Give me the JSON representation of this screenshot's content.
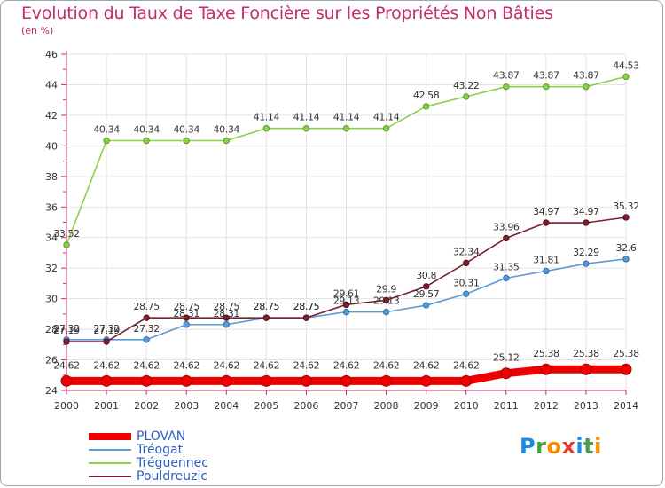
{
  "title": "Evolution du Taux de Taxe Foncière sur les Propriétés Non Bâties",
  "subtitle": "(en %)",
  "logo_text": "Proxiti",
  "chart_data": {
    "type": "line",
    "title": "Evolution du Taux de Taxe Foncière sur les Propriétés Non Bâties",
    "ylabel": "(en %)",
    "xlabel": "",
    "ylim": [
      24,
      46
    ],
    "yticks": [
      "24",
      "26",
      "28",
      "30",
      "32",
      "34",
      "36",
      "38",
      "40",
      "42",
      "44",
      "46"
    ],
    "grid": true,
    "legend_position": "bottom-left",
    "categories": [
      "2000",
      "2001",
      "2002",
      "2003",
      "2004",
      "2005",
      "2006",
      "2007",
      "2008",
      "2009",
      "2010",
      "2011",
      "2012",
      "2013",
      "2014"
    ],
    "series": [
      {
        "name": "PLOVAN",
        "color": "#ee0000",
        "values": [
          24.62,
          24.62,
          24.62,
          24.62,
          24.62,
          24.62,
          24.62,
          24.62,
          24.62,
          24.62,
          24.62,
          25.12,
          25.38,
          25.38,
          25.38
        ],
        "labels": [
          "24.62",
          "24.62",
          "24.62",
          "24.62",
          "24.62",
          "24.62",
          "24.62",
          "24.62",
          "24.62",
          "24.62",
          "24.62",
          "25.12",
          "25.38",
          "25.38",
          "25.38"
        ]
      },
      {
        "name": "Tréogat",
        "color": "#5b9bd5",
        "values": [
          27.32,
          27.32,
          27.32,
          28.31,
          28.31,
          28.75,
          28.75,
          29.13,
          29.13,
          29.57,
          30.31,
          31.35,
          31.81,
          32.29,
          32.6
        ],
        "labels": [
          "27.32",
          "27.32",
          "27.32",
          "28.31",
          "28.31",
          "28.75",
          "28.75",
          "29.13",
          "29.13",
          "29.57",
          "30.31",
          "31.35",
          "31.81",
          "32.29",
          "32.6"
        ]
      },
      {
        "name": "Tréguennec",
        "color": "#8dd04a",
        "values": [
          33.52,
          40.34,
          40.34,
          40.34,
          40.34,
          41.14,
          41.14,
          41.14,
          41.14,
          42.58,
          43.22,
          43.87,
          43.87,
          43.87,
          44.53
        ],
        "labels": [
          "33.52",
          "40.34",
          "40.34",
          "40.34",
          "40.34",
          "41.14",
          "41.14",
          "41.14",
          "41.14",
          "42.58",
          "43.22",
          "43.87",
          "43.87",
          "43.87",
          "44.53"
        ]
      },
      {
        "name": "Pouldreuzic",
        "color": "#7a2030",
        "values": [
          27.19,
          27.19,
          28.75,
          28.75,
          28.75,
          28.75,
          28.75,
          29.61,
          29.9,
          30.8,
          32.34,
          33.96,
          34.97,
          34.97,
          35.32
        ],
        "labels": [
          "27.19",
          "27.19",
          "28.75",
          "28.75",
          "28.75",
          "28.75",
          "28.75",
          "29.61",
          "29.9",
          "30.8",
          "32.34",
          "33.96",
          "34.97",
          "34.97",
          "35.32"
        ]
      }
    ]
  }
}
